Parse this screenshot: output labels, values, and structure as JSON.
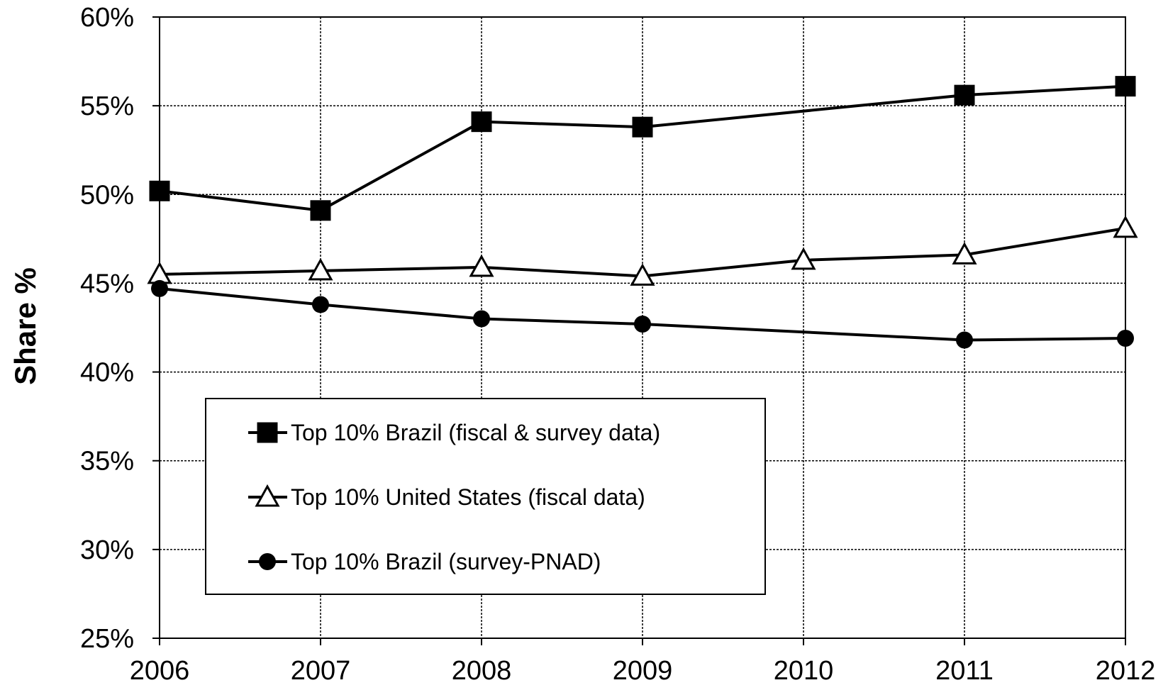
{
  "chart_data": {
    "type": "line",
    "title": "",
    "xlabel": "",
    "ylabel": "Share %",
    "x": [
      2006,
      2007,
      2008,
      2009,
      2010,
      2011,
      2012
    ],
    "xlim": [
      2006,
      2012
    ],
    "ylim": [
      0.25,
      0.6
    ],
    "y_ticks": [
      {
        "value": 0.25,
        "label": "25%"
      },
      {
        "value": 0.3,
        "label": "30%"
      },
      {
        "value": 0.35,
        "label": "35%"
      },
      {
        "value": 0.4,
        "label": "40%"
      },
      {
        "value": 0.45,
        "label": "45%"
      },
      {
        "value": 0.5,
        "label": "50%"
      },
      {
        "value": 0.55,
        "label": "55%"
      },
      {
        "value": 0.6,
        "label": "60%"
      }
    ],
    "x_tick_labels": [
      "2006",
      "2007",
      "2008",
      "2009",
      "2010",
      "2011",
      "2012"
    ],
    "grid": true,
    "legend_position": "lower-left",
    "series": [
      {
        "name": "Top 10% Brazil (fiscal & survey data)",
        "marker": "filled-square",
        "color": "#000000",
        "points": [
          {
            "x": 2006,
            "y": 0.502
          },
          {
            "x": 2007,
            "y": 0.491
          },
          {
            "x": 2008,
            "y": 0.541
          },
          {
            "x": 2009,
            "y": 0.538
          },
          {
            "x": 2011,
            "y": 0.556
          },
          {
            "x": 2012,
            "y": 0.561
          }
        ]
      },
      {
        "name": "Top 10% United States (fiscal data)",
        "marker": "open-triangle",
        "color": "#000000",
        "points": [
          {
            "x": 2006,
            "y": 0.455
          },
          {
            "x": 2007,
            "y": 0.457
          },
          {
            "x": 2008,
            "y": 0.459
          },
          {
            "x": 2009,
            "y": 0.454
          },
          {
            "x": 2010,
            "y": 0.463
          },
          {
            "x": 2011,
            "y": 0.466
          },
          {
            "x": 2012,
            "y": 0.481
          }
        ]
      },
      {
        "name": "Top 10% Brazil (survey-PNAD)",
        "marker": "filled-circle",
        "color": "#000000",
        "points": [
          {
            "x": 2006,
            "y": 0.447
          },
          {
            "x": 2007,
            "y": 0.438
          },
          {
            "x": 2008,
            "y": 0.43
          },
          {
            "x": 2009,
            "y": 0.427
          },
          {
            "x": 2011,
            "y": 0.418
          },
          {
            "x": 2012,
            "y": 0.419
          }
        ]
      }
    ]
  }
}
